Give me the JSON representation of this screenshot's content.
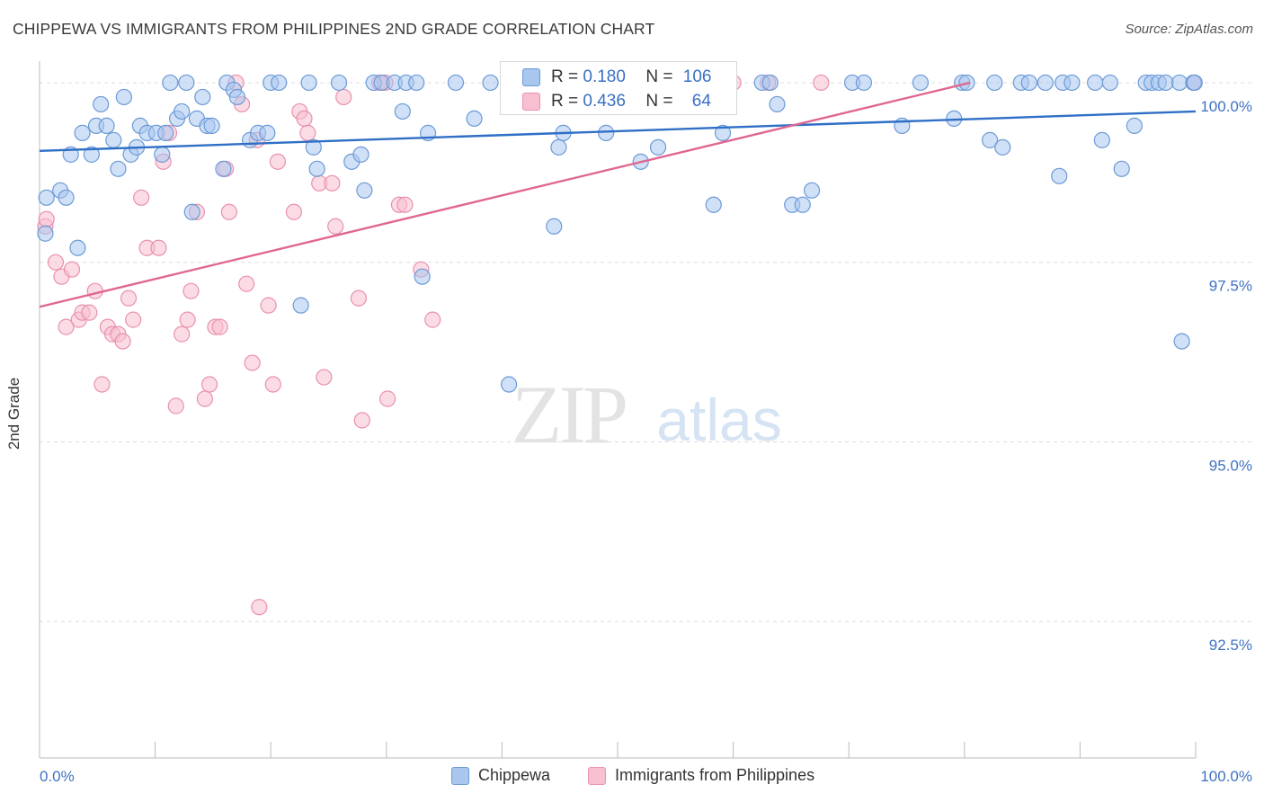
{
  "title": "CHIPPEWA VS IMMIGRANTS FROM PHILIPPINES 2ND GRADE CORRELATION CHART",
  "source": "Source: ZipAtlas.com",
  "watermark": {
    "zip": "ZIP",
    "atlas": "atlas"
  },
  "colors": {
    "blue_fill": "#a9c6ee",
    "blue_stroke": "#6b9ad8",
    "blue_line": "#2f6fc6",
    "pink_fill": "#f7bfd0",
    "pink_stroke": "#e991ad",
    "pink_line": "#e0678f",
    "axis_text": "#3f72c2",
    "grid": "#dddddd"
  },
  "legend_stats": [
    {
      "r_label": "R =",
      "r_value": "0.180",
      "n_label": "N =",
      "n_value": "106"
    },
    {
      "r_label": "R =",
      "r_value": "0.436",
      "n_label": "N =",
      "n_value": "64"
    }
  ],
  "chart_data": {
    "type": "scatter",
    "title": "CHIPPEWA VS IMMIGRANTS FROM PHILIPPINES 2ND GRADE CORRELATION CHART",
    "xlabel": "",
    "ylabel": "2nd Grade",
    "xlim": [
      0,
      100
    ],
    "ylim": [
      90.6,
      100.4
    ],
    "x_tick_labels": [
      "0.0%",
      "100.0%"
    ],
    "y_ticks": [
      92.5,
      95.0,
      97.5,
      100.0
    ],
    "y_tick_labels": [
      "92.5%",
      "95.0%",
      "97.5%",
      "100.0%"
    ],
    "grid": "horizontal dashed",
    "legend_position": "bottom",
    "series": [
      {
        "name": "Chippewa",
        "trend": {
          "x": [
            0,
            100
          ],
          "y": [
            99.05,
            99.6
          ]
        },
        "points": [
          [
            0.5,
            97.9
          ],
          [
            0.6,
            98.4
          ],
          [
            1.8,
            98.5
          ],
          [
            2.3,
            98.4
          ],
          [
            3.3,
            97.7
          ],
          [
            2.7,
            99.0
          ],
          [
            3.7,
            99.3
          ],
          [
            4.5,
            99.0
          ],
          [
            4.9,
            99.4
          ],
          [
            5.3,
            99.7
          ],
          [
            5.8,
            99.4
          ],
          [
            6.4,
            99.2
          ],
          [
            6.8,
            98.8
          ],
          [
            7.3,
            99.8
          ],
          [
            7.9,
            99.0
          ],
          [
            8.4,
            99.1
          ],
          [
            8.7,
            99.4
          ],
          [
            9.3,
            99.3
          ],
          [
            10.1,
            99.3
          ],
          [
            10.6,
            99.0
          ],
          [
            10.9,
            99.3
          ],
          [
            11.3,
            100.0
          ],
          [
            11.9,
            99.5
          ],
          [
            12.3,
            99.6
          ],
          [
            12.7,
            100.0
          ],
          [
            13.2,
            98.2
          ],
          [
            13.6,
            99.5
          ],
          [
            14.1,
            99.8
          ],
          [
            14.5,
            99.4
          ],
          [
            14.9,
            99.4
          ],
          [
            15.9,
            98.8
          ],
          [
            16.2,
            100.0
          ],
          [
            16.8,
            99.9
          ],
          [
            17.1,
            99.8
          ],
          [
            18.2,
            99.2
          ],
          [
            18.9,
            99.3
          ],
          [
            19.7,
            99.3
          ],
          [
            20.0,
            100.0
          ],
          [
            20.7,
            100.0
          ],
          [
            22.6,
            96.9
          ],
          [
            23.3,
            100.0
          ],
          [
            23.7,
            99.1
          ],
          [
            24.0,
            98.8
          ],
          [
            25.9,
            100.0
          ],
          [
            27.0,
            98.9
          ],
          [
            27.8,
            99.0
          ],
          [
            28.1,
            98.5
          ],
          [
            28.9,
            100.0
          ],
          [
            29.6,
            100.0
          ],
          [
            30.7,
            100.0
          ],
          [
            31.4,
            99.6
          ],
          [
            31.7,
            100.0
          ],
          [
            32.6,
            100.0
          ],
          [
            33.1,
            97.3
          ],
          [
            33.6,
            99.3
          ],
          [
            36.0,
            100.0
          ],
          [
            37.6,
            99.5
          ],
          [
            39.0,
            100.0
          ],
          [
            40.6,
            95.8
          ],
          [
            41.7,
            100.0
          ],
          [
            44.5,
            98.0
          ],
          [
            44.9,
            99.1
          ],
          [
            45.3,
            99.3
          ],
          [
            47.0,
            100.0
          ],
          [
            49.0,
            99.3
          ],
          [
            50.5,
            100.0
          ],
          [
            52.0,
            98.9
          ],
          [
            53.5,
            99.1
          ],
          [
            55.9,
            100.0
          ],
          [
            58.3,
            98.3
          ],
          [
            59.1,
            99.3
          ],
          [
            62.5,
            100.0
          ],
          [
            63.2,
            100.0
          ],
          [
            63.8,
            99.7
          ],
          [
            65.1,
            98.3
          ],
          [
            66.0,
            98.3
          ],
          [
            66.8,
            98.5
          ],
          [
            70.3,
            100.0
          ],
          [
            71.3,
            100.0
          ],
          [
            74.6,
            99.4
          ],
          [
            76.2,
            100.0
          ],
          [
            79.1,
            99.5
          ],
          [
            79.8,
            100.0
          ],
          [
            80.2,
            100.0
          ],
          [
            82.2,
            99.2
          ],
          [
            82.6,
            100.0
          ],
          [
            83.3,
            99.1
          ],
          [
            84.9,
            100.0
          ],
          [
            85.6,
            100.0
          ],
          [
            87.0,
            100.0
          ],
          [
            88.2,
            98.7
          ],
          [
            88.5,
            100.0
          ],
          [
            89.3,
            100.0
          ],
          [
            91.3,
            100.0
          ],
          [
            91.9,
            99.2
          ],
          [
            92.6,
            100.0
          ],
          [
            93.6,
            98.8
          ],
          [
            94.7,
            99.4
          ],
          [
            95.7,
            100.0
          ],
          [
            96.2,
            100.0
          ],
          [
            96.8,
            100.0
          ],
          [
            97.4,
            100.0
          ],
          [
            98.6,
            100.0
          ],
          [
            98.8,
            96.4
          ],
          [
            99.8,
            100.0
          ],
          [
            99.9,
            100.0
          ]
        ]
      },
      {
        "name": "Immigrants from Philippines",
        "trend": {
          "x": [
            0,
            80.5
          ],
          "y": [
            96.88,
            100.0
          ]
        },
        "points": [
          [
            0.5,
            98.0
          ],
          [
            0.6,
            98.1
          ],
          [
            1.4,
            97.5
          ],
          [
            1.9,
            97.3
          ],
          [
            2.3,
            96.6
          ],
          [
            2.8,
            97.4
          ],
          [
            3.4,
            96.7
          ],
          [
            3.7,
            96.8
          ],
          [
            4.3,
            96.8
          ],
          [
            4.8,
            97.1
          ],
          [
            5.4,
            95.8
          ],
          [
            5.9,
            96.6
          ],
          [
            6.3,
            96.5
          ],
          [
            6.8,
            96.5
          ],
          [
            7.2,
            96.4
          ],
          [
            7.7,
            97.0
          ],
          [
            8.1,
            96.7
          ],
          [
            8.8,
            98.4
          ],
          [
            9.3,
            97.7
          ],
          [
            10.3,
            97.7
          ],
          [
            10.7,
            98.9
          ],
          [
            11.2,
            99.3
          ],
          [
            11.8,
            95.5
          ],
          [
            12.3,
            96.5
          ],
          [
            12.8,
            96.7
          ],
          [
            13.1,
            97.1
          ],
          [
            13.6,
            98.2
          ],
          [
            14.3,
            95.6
          ],
          [
            14.7,
            95.8
          ],
          [
            15.2,
            96.6
          ],
          [
            15.6,
            96.6
          ],
          [
            16.1,
            98.8
          ],
          [
            16.4,
            98.2
          ],
          [
            17.0,
            100.0
          ],
          [
            17.5,
            99.7
          ],
          [
            17.9,
            97.2
          ],
          [
            18.4,
            96.1
          ],
          [
            18.8,
            99.2
          ],
          [
            19.0,
            92.7
          ],
          [
            19.8,
            96.9
          ],
          [
            20.2,
            95.8
          ],
          [
            20.6,
            98.9
          ],
          [
            22.0,
            98.2
          ],
          [
            22.5,
            99.6
          ],
          [
            22.9,
            99.5
          ],
          [
            23.2,
            99.3
          ],
          [
            24.2,
            98.6
          ],
          [
            24.6,
            95.9
          ],
          [
            25.3,
            98.6
          ],
          [
            25.6,
            98.0
          ],
          [
            26.3,
            99.8
          ],
          [
            27.6,
            97.0
          ],
          [
            27.9,
            95.3
          ],
          [
            29.4,
            100.0
          ],
          [
            29.9,
            100.0
          ],
          [
            30.1,
            95.6
          ],
          [
            31.1,
            98.3
          ],
          [
            31.6,
            98.3
          ],
          [
            33.0,
            97.4
          ],
          [
            34.0,
            96.7
          ],
          [
            60.0,
            100.0
          ],
          [
            63.0,
            100.0
          ],
          [
            67.6,
            100.0
          ],
          [
            99.9,
            100.0
          ]
        ]
      }
    ]
  }
}
